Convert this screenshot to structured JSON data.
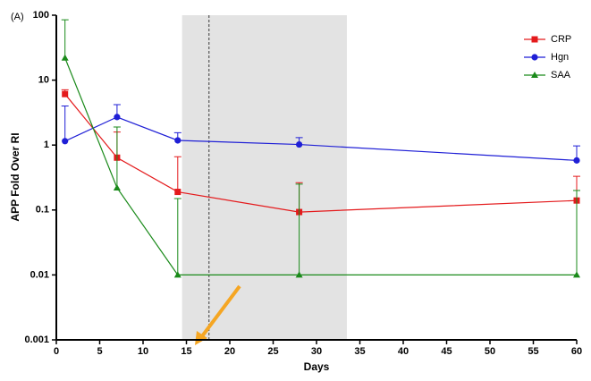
{
  "chart_data": {
    "type": "line",
    "panel_label": "(A)",
    "x_label": "Days",
    "y_label": "APP Fold Over RI",
    "log_scale_y": true,
    "x": [
      1,
      7,
      14,
      28,
      60
    ],
    "xlim": [
      0,
      60
    ],
    "xticks": [
      0,
      5,
      10,
      15,
      20,
      25,
      30,
      35,
      40,
      45,
      50,
      55,
      60
    ],
    "ylim": [
      0.001,
      100
    ],
    "yticks": [
      0.001,
      0.01,
      0.1,
      1,
      10,
      100
    ],
    "shaded_region": [
      14.5,
      33.5
    ],
    "vline": 17.6,
    "legend_position": "top-right",
    "series": [
      {
        "name": "CRP",
        "color": "#e41a1c",
        "marker": "square",
        "values": [
          6.1,
          0.64,
          0.19,
          0.093,
          0.14
        ],
        "errors": [
          1.0,
          0.95,
          0.47,
          0.17,
          0.19
        ]
      },
      {
        "name": "Hgn",
        "color": "#1f1fd6",
        "marker": "circle",
        "values": [
          1.15,
          2.7,
          1.18,
          1.02,
          0.58
        ],
        "errors": [
          2.85,
          1.5,
          0.37,
          0.28,
          0.39
        ]
      },
      {
        "name": "SAA",
        "color": "#1a8a1a",
        "marker": "triangle",
        "values": [
          22,
          0.22,
          0.01,
          0.01,
          0.01
        ],
        "errors": [
          63,
          1.68,
          0.14,
          0.24,
          0.19
        ]
      }
    ]
  }
}
